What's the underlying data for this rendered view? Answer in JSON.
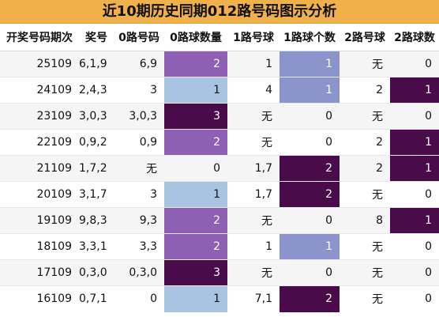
{
  "title": "近10期历史同期012路号码图示分析",
  "headers": [
    "开奖号码期次",
    "奖号",
    "0路号码",
    "0路球数量",
    "1路号球",
    "1路球个数",
    "2路号球",
    "2路球数"
  ],
  "rows": [
    {
      "period": "25109",
      "prize": "6,1,9",
      "r0": "6,9",
      "r0n": "2",
      "r1": "1",
      "r1n": "1",
      "r2": "无",
      "r2n": "0"
    },
    {
      "period": "24109",
      "prize": "2,4,3",
      "r0": "3",
      "r0n": "1",
      "r1": "4",
      "r1n": "1",
      "r2": "2",
      "r2n": "1"
    },
    {
      "period": "23109",
      "prize": "3,0,3",
      "r0": "3,0,3",
      "r0n": "3",
      "r1": "无",
      "r1n": "0",
      "r2": "无",
      "r2n": "0"
    },
    {
      "period": "22109",
      "prize": "0,9,2",
      "r0": "0,9",
      "r0n": "2",
      "r1": "无",
      "r1n": "0",
      "r2": "2",
      "r2n": "1"
    },
    {
      "period": "21109",
      "prize": "1,7,2",
      "r0": "无",
      "r0n": "0",
      "r1": "1,7",
      "r1n": "2",
      "r2": "2",
      "r2n": "1"
    },
    {
      "period": "20109",
      "prize": "3,1,7",
      "r0": "3",
      "r0n": "1",
      "r1": "1,7",
      "r1n": "2",
      "r2": "无",
      "r2n": "0"
    },
    {
      "period": "19109",
      "prize": "9,8,3",
      "r0": "9,3",
      "r0n": "2",
      "r1": "无",
      "r1n": "0",
      "r2": "8",
      "r2n": "1"
    },
    {
      "period": "18109",
      "prize": "3,3,1",
      "r0": "3,3",
      "r0n": "2",
      "r1": "1",
      "r1n": "1",
      "r2": "无",
      "r2n": "0"
    },
    {
      "period": "17109",
      "prize": "0,3,0",
      "r0": "0,3,0",
      "r0n": "3",
      "r1": "无",
      "r1n": "0",
      "r2": "无",
      "r2n": "0"
    },
    {
      "period": "16109",
      "prize": "0,7,1",
      "r0": "0",
      "r0n": "1",
      "r1": "7,1",
      "r1n": "2",
      "r2": "无",
      "r2n": "0"
    }
  ],
  "colors": {
    "title_bg": "#f0b04a",
    "r0_count_1": "#a8c4e0",
    "r0_count_2": "#8f5fb3",
    "r0_count_3": "#4a0b4a",
    "r1_count_1": "#8c94cc",
    "r1_count_2": "#4a0b4a",
    "r2_count_1": "#4a0b4a"
  }
}
